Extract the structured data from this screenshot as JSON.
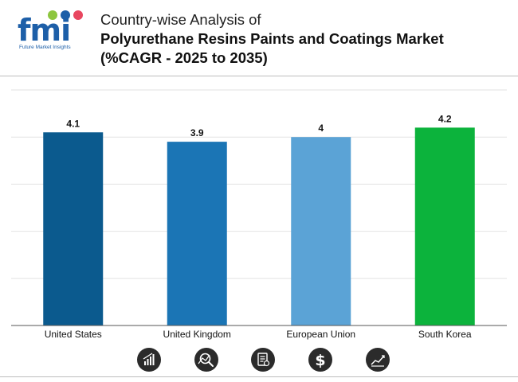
{
  "brand": {
    "logo_text": "fmi",
    "logo_subtitle": "Future Market Insights"
  },
  "title": {
    "line1": "Country-wise Analysis of",
    "line2": "Polyurethane Resins Paints and Coatings Market",
    "line3": "(%CAGR - 2025 to 2035)"
  },
  "chart_data": {
    "type": "bar",
    "title": "Country-wise Analysis of Polyurethane Resins Paints and Coatings Market (%CAGR - 2025 to 2035)",
    "categories": [
      "United States",
      "United Kingdom",
      "European Union",
      "South Korea"
    ],
    "values": [
      4.1,
      3.9,
      4,
      4.2
    ],
    "value_labels": [
      "4.1",
      "3.9",
      "4",
      "4.2"
    ],
    "colors": [
      "#0b5a8e",
      "#1b75b5",
      "#5ba3d6",
      "#0cb33c"
    ],
    "xlabel": "",
    "ylabel": "",
    "ylim": [
      0,
      5
    ],
    "grid": true
  },
  "footer_icons": [
    "growth-chart-icon",
    "magnifier-analysis-icon",
    "document-report-icon",
    "dollar-icon",
    "trend-line-icon"
  ]
}
